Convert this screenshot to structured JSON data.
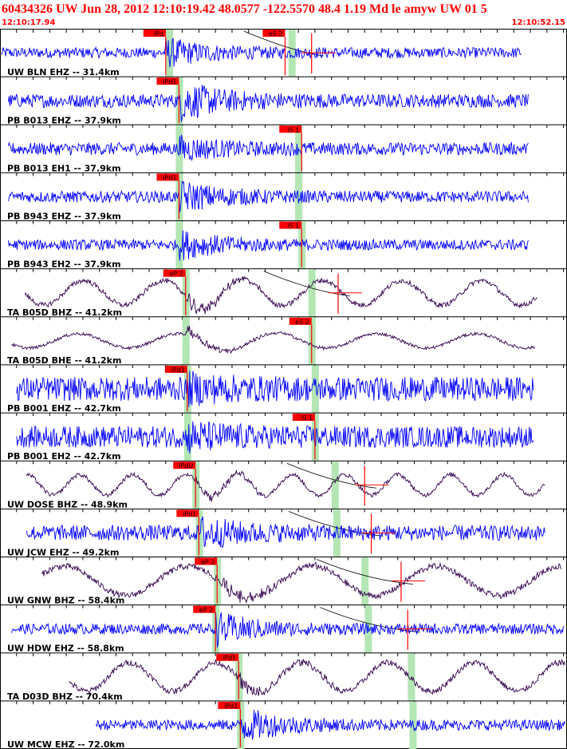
{
  "header": {
    "title": "60434326 UW Jun 28, 2012 12:10:19.42    48.0577 -122.5570 48.4 1.19 Md le amyw UW 01    5",
    "time_start": "12:10:17.94",
    "time_end": "12:10:52.15"
  },
  "colors": {
    "header_text": "#ff0000",
    "pick_box": "#ff0000",
    "pick_text": "#000000",
    "trace_short_period": "#0000ff",
    "trace_broadband": "#33004d",
    "window_band": "#b3e6b3",
    "frame": "#000000",
    "predicted_curve": "#000000",
    "amplitude_marker": "#ff0000"
  },
  "time_window": {
    "start_s": 0.0,
    "end_s": 34.21
  },
  "traces": [
    {
      "label": "UW BLN EHZ -- 31.4km",
      "kind": "short_period",
      "trace_start_s": 0.1,
      "trace_end_s": 31.5,
      "amplitude": 0.22,
      "period_s": 0.35,
      "signal_gain": 3.2,
      "picks": [
        {
          "label": "iPd",
          "time_s": 10.0
        },
        {
          "label": "eS 2",
          "time_s": 17.2
        }
      ],
      "windows_s": [
        10.2,
        17.6
      ],
      "amp_marker_s": 18.8,
      "curve": true
    },
    {
      "label": "PB B013 EHZ -- 37.9km",
      "kind": "short_period",
      "trace_start_s": 0.5,
      "trace_end_s": 31.9,
      "amplitude": 0.28,
      "period_s": 0.22,
      "signal_gain": 3.4,
      "picks": [
        {
          "label": "iPd1",
          "time_s": 10.8
        }
      ],
      "windows_s": [
        10.8
      ],
      "curve": false
    },
    {
      "label": "PB B013 EH1 -- 37.9km",
      "kind": "short_period",
      "trace_start_s": 0.5,
      "trace_end_s": 31.9,
      "amplitude": 0.26,
      "period_s": 0.22,
      "signal_gain": 2.4,
      "picks": [
        {
          "label": "iS 1",
          "time_s": 18.2
        }
      ],
      "windows_s": [
        10.8,
        18.0
      ],
      "curve": false
    },
    {
      "label": "PB B943 EHZ -- 37.9km",
      "kind": "short_period",
      "trace_start_s": 0.5,
      "trace_end_s": 31.9,
      "amplitude": 0.24,
      "period_s": 0.22,
      "signal_gain": 3.2,
      "picks": [
        {
          "label": "iPd1",
          "time_s": 10.8
        }
      ],
      "windows_s": [
        10.8,
        18.0
      ],
      "curve": false
    },
    {
      "label": "PB B943 EH2 -- 37.9km",
      "kind": "short_period",
      "trace_start_s": 0.5,
      "trace_end_s": 31.9,
      "amplitude": 0.22,
      "period_s": 0.22,
      "signal_gain": 3.2,
      "picks": [
        {
          "label": "iS 1",
          "time_s": 18.2
        }
      ],
      "windows_s": [
        10.8,
        18.2
      ],
      "curve": false
    },
    {
      "label": "TA B05D BHZ -- 41.2km",
      "kind": "broadband",
      "trace_start_s": 1.5,
      "trace_end_s": 32.4,
      "amplitude": 0.6,
      "period_s": 4.8,
      "signal_gain": 1.5,
      "picks": [
        {
          "label": "eP 2",
          "time_s": 11.2
        }
      ],
      "windows_s": [
        11.2,
        18.8
      ],
      "amp_marker_s": 20.4,
      "curve": true
    },
    {
      "label": "TA B05D BHE -- 41.2km",
      "kind": "broadband",
      "trace_start_s": 0.7,
      "trace_end_s": 32.3,
      "amplitude": 0.35,
      "period_s": 6.0,
      "signal_gain": 2.0,
      "picks": [
        {
          "label": "eS 2",
          "time_s": 18.8
        }
      ],
      "windows_s": [
        11.2,
        18.8
      ],
      "curve": false
    },
    {
      "label": "PB B001 EHZ -- 42.7km",
      "kind": "short_period",
      "trace_start_s": 1.0,
      "trace_end_s": 32.2,
      "amplitude": 0.5,
      "period_s": 0.3,
      "signal_gain": 1.6,
      "picks": [
        {
          "label": "iPd1",
          "time_s": 11.3
        }
      ],
      "windows_s": [
        11.3,
        19.0
      ],
      "curve": false
    },
    {
      "label": "PB B001 EH2 -- 42.7km",
      "kind": "short_period",
      "trace_start_s": 1.0,
      "trace_end_s": 32.2,
      "amplitude": 0.45,
      "period_s": 0.3,
      "signal_gain": 1.8,
      "picks": [
        {
          "label": "iS 1",
          "time_s": 19.0
        }
      ],
      "windows_s": [
        11.3,
        19.0
      ],
      "curve": false
    },
    {
      "label": "UW DOSE BHZ -- 48.9km",
      "kind": "broadband",
      "trace_start_s": 1.6,
      "trace_end_s": 32.9,
      "amplitude": 0.5,
      "period_s": 3.2,
      "signal_gain": 1.3,
      "picks": [
        {
          "label": "iPdU",
          "time_s": 11.8
        }
      ],
      "windows_s": [
        11.8,
        20.2
      ],
      "amp_marker_s": 22.0,
      "curve": true
    },
    {
      "label": "UW JCW EHZ -- 49.2km",
      "kind": "short_period",
      "trace_start_s": 1.6,
      "trace_end_s": 32.9,
      "amplitude": 0.32,
      "period_s": 0.25,
      "signal_gain": 2.6,
      "picks": [
        {
          "label": "iPd1",
          "time_s": 12.0
        }
      ],
      "windows_s": [
        12.0,
        20.3
      ],
      "amp_marker_s": 22.4,
      "curve": true
    },
    {
      "label": "UW GNW BHZ -- 58.4km",
      "kind": "broadband",
      "trace_start_s": 2.5,
      "trace_end_s": 33.9,
      "amplitude": 0.72,
      "period_s": 7.5,
      "signal_gain": 1.2,
      "picks": [
        {
          "label": "eP 2",
          "time_s": 13.1
        }
      ],
      "windows_s": [
        13.1,
        22.0
      ],
      "amp_marker_s": 24.2,
      "curve": true
    },
    {
      "label": "UW HDW EHZ -- 58.8km",
      "kind": "short_period",
      "trace_start_s": 0.7,
      "trace_end_s": 34.0,
      "amplitude": 0.22,
      "period_s": 0.3,
      "signal_gain": 3.6,
      "picks": [
        {
          "label": "eP 2",
          "time_s": 13.0
        }
      ],
      "windows_s": [
        13.0,
        22.2
      ],
      "amp_marker_s": 24.6,
      "curve": true
    },
    {
      "label": "TA D03D BHZ -- 70.4km",
      "kind": "broadband",
      "trace_start_s": 4.2,
      "trace_end_s": 35.4,
      "amplitude": 0.7,
      "period_s": 5.2,
      "signal_gain": 1.2,
      "picks": [
        {
          "label": "iPd1",
          "time_s": 14.4
        }
      ],
      "windows_s": [
        14.4,
        24.8
      ],
      "curve": false
    },
    {
      "label": "UW MCW EHZ -- 72.0km",
      "kind": "short_period",
      "trace_start_s": 5.8,
      "trace_end_s": 35.4,
      "amplitude": 0.22,
      "period_s": 0.3,
      "signal_gain": 3.8,
      "picks": [
        {
          "label": "iPd1",
          "time_s": 14.5
        }
      ],
      "windows_s": [
        14.5,
        24.9
      ],
      "curve": false
    }
  ]
}
